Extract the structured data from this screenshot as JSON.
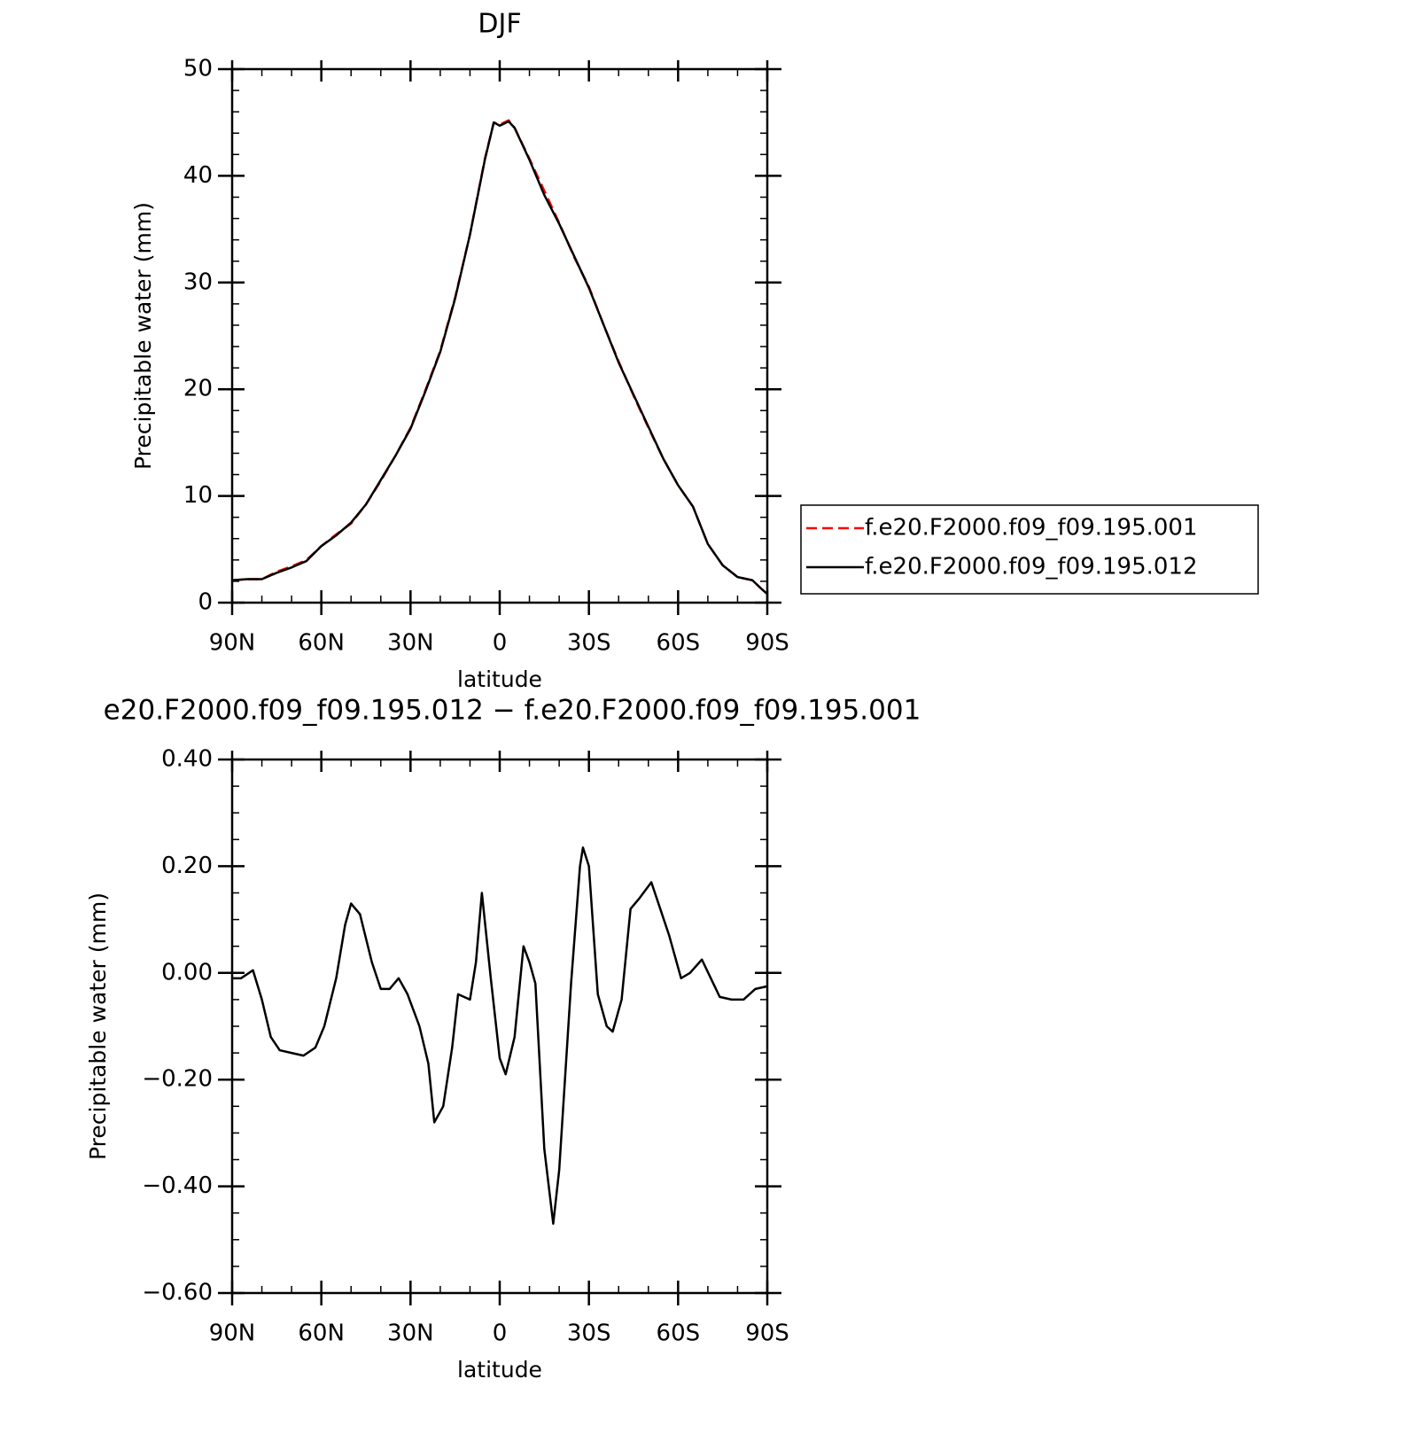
{
  "chart_data": [
    {
      "type": "line",
      "title": "DJF",
      "xlabel": "latitude",
      "ylabel": "Precipitable water (mm)",
      "x": [
        90,
        85,
        80,
        75,
        70,
        65,
        60,
        55,
        50,
        45,
        40,
        35,
        30,
        25,
        20,
        15,
        10,
        5,
        2,
        0,
        -3,
        -5,
        -10,
        -15,
        -20,
        -25,
        -30,
        -35,
        -40,
        -45,
        -50,
        -55,
        -60,
        -65,
        -70,
        -75,
        -80,
        -85,
        -88,
        -90
      ],
      "series": [
        {
          "name": "f.e20.F2000.f09_f09.195.001",
          "color": "#ff0000",
          "line_style": "dashed",
          "values": [
            2.1,
            2.2,
            2.2,
            2.9,
            3.4,
            4.0,
            5.3,
            6.4,
            7.4,
            9.2,
            11.4,
            13.8,
            16.4,
            19.9,
            23.6,
            28.6,
            34.5,
            41.6,
            45.0,
            44.8,
            45.2,
            44.5,
            41.6,
            38.6,
            35.6,
            32.4,
            29.6,
            26.0,
            22.6,
            19.4,
            16.4,
            13.5,
            11.0,
            9.0,
            5.5,
            3.5,
            2.4,
            2.1,
            1.3,
            0.8
          ]
        },
        {
          "name": "f.e20.F2000.f09_f09.195.012",
          "color": "#000000",
          "line_style": "solid",
          "values": [
            2.1,
            2.2,
            2.2,
            2.8,
            3.3,
            3.9,
            5.3,
            6.3,
            7.5,
            9.2,
            11.5,
            13.8,
            16.3,
            19.8,
            23.5,
            28.5,
            34.5,
            41.5,
            45.0,
            44.7,
            45.1,
            44.5,
            41.5,
            38.2,
            35.5,
            32.5,
            29.5,
            26.0,
            22.5,
            19.5,
            16.5,
            13.5,
            11.0,
            9.0,
            5.5,
            3.5,
            2.4,
            2.1,
            1.3,
            0.8
          ]
        }
      ],
      "xlim": [
        90,
        -90
      ],
      "xticks": [
        {
          "value": 90,
          "label": "90N"
        },
        {
          "value": 60,
          "label": "60N"
        },
        {
          "value": 30,
          "label": "30N"
        },
        0,
        {
          "value": -30,
          "label": "30S"
        },
        {
          "value": -60,
          "label": "60S"
        },
        {
          "value": -90,
          "label": "90S"
        }
      ],
      "ylim": [
        0,
        50
      ],
      "yticks": [
        0,
        10,
        20,
        30,
        40,
        50
      ],
      "legend": "right"
    },
    {
      "type": "line",
      "title": "e20.F2000.f09_f09.195.012 − f.e20.F2000.f09_f09.195.001",
      "xlabel": "latitude",
      "ylabel": "Precipitable water (mm)",
      "x": [
        90,
        87,
        83,
        80,
        77,
        74,
        70,
        66,
        62,
        59,
        55,
        52,
        50,
        47,
        43,
        40,
        37,
        34,
        31,
        27,
        24,
        22,
        19,
        16,
        14,
        10,
        8,
        6,
        3,
        0,
        -2,
        -5,
        -8,
        -10,
        -12,
        -15,
        -18,
        -20,
        -24,
        -27,
        -28,
        -30,
        -33,
        -36,
        -38,
        -41,
        -44,
        -47,
        -51,
        -54,
        -57,
        -61,
        -64,
        -68,
        -71,
        -74,
        -78,
        -82,
        -86,
        -90
      ],
      "values": [
        -0.01,
        -0.01,
        0.005,
        -0.05,
        -0.12,
        -0.145,
        -0.15,
        -0.155,
        -0.14,
        -0.1,
        -0.01,
        0.09,
        0.13,
        0.11,
        0.02,
        -0.03,
        -0.03,
        -0.01,
        -0.04,
        -0.1,
        -0.17,
        -0.28,
        -0.25,
        -0.14,
        -0.04,
        -0.05,
        0.02,
        0.15,
        -0.01,
        -0.16,
        -0.19,
        -0.12,
        0.05,
        0.02,
        -0.02,
        -0.33,
        -0.47,
        -0.37,
        -0.02,
        0.2,
        0.235,
        0.2,
        -0.04,
        -0.1,
        -0.11,
        -0.05,
        0.12,
        0.14,
        0.17,
        0.12,
        0.07,
        -0.01,
        0.0,
        0.025,
        -0.01,
        -0.045,
        -0.05,
        -0.05,
        -0.03,
        -0.025
      ],
      "color": "#000000",
      "xlim": [
        90,
        -90
      ],
      "xticks": [
        {
          "value": 90,
          "label": "90N"
        },
        {
          "value": 60,
          "label": "60N"
        },
        {
          "value": 30,
          "label": "30N"
        },
        0,
        {
          "value": -30,
          "label": "30S"
        },
        {
          "value": -60,
          "label": "60S"
        },
        {
          "value": -90,
          "label": "90S"
        }
      ],
      "ylim": [
        -0.6,
        0.4
      ],
      "yticks": [
        {
          "value": -0.6,
          "label": "−0.60"
        },
        {
          "value": -0.4,
          "label": "−0.40"
        },
        {
          "value": -0.2,
          "label": "−0.20"
        },
        {
          "value": 0,
          "label": "0.00"
        },
        {
          "value": 0.2,
          "label": "0.20"
        },
        {
          "value": 0.4,
          "label": "0.40"
        }
      ]
    }
  ]
}
